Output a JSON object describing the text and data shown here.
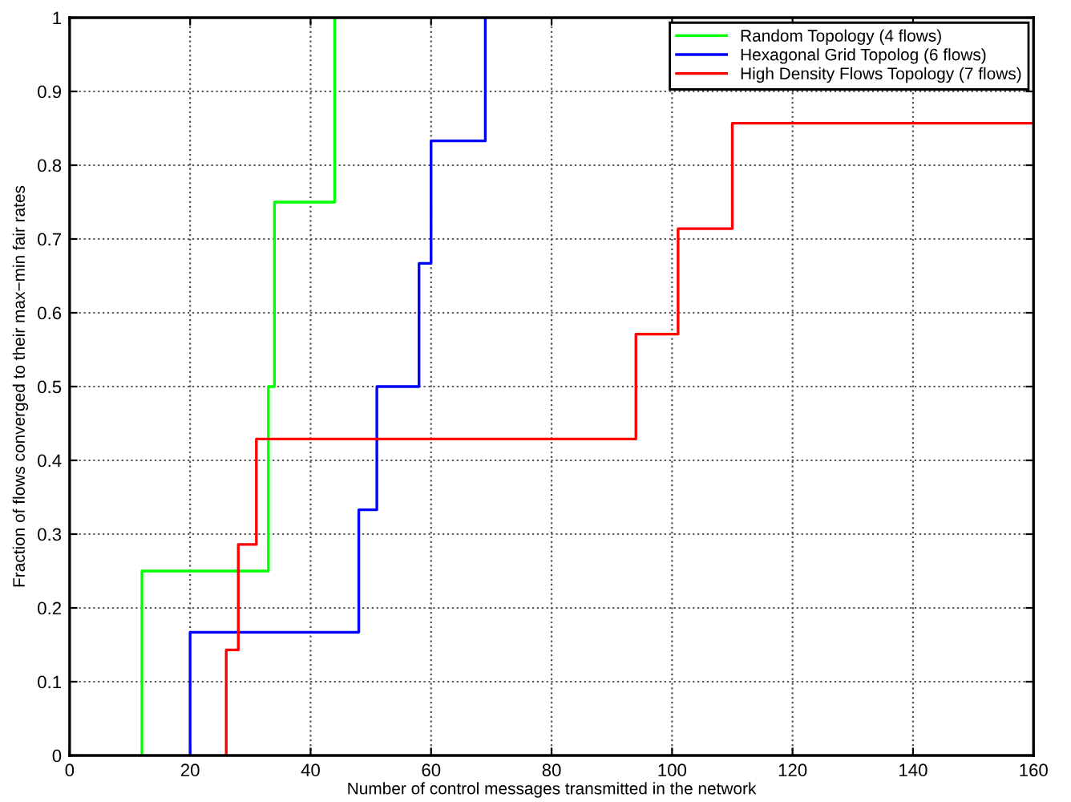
{
  "chart_data": {
    "type": "step",
    "xlabel": "Number of control messages transmitted in the network",
    "ylabel": "Fraction of flows converged to their max−min fair rates",
    "xlim": [
      0,
      160
    ],
    "xticks": [
      0,
      20,
      40,
      60,
      80,
      100,
      120,
      140,
      160
    ],
    "ylim": [
      0,
      1
    ],
    "yticks": [
      0,
      0.1,
      0.2,
      0.3,
      0.4,
      0.5,
      0.6,
      0.7,
      0.8,
      0.9,
      1
    ],
    "grid": true,
    "legend": "top right",
    "line_style": "solid",
    "marker": "none",
    "series": [
      {
        "name": "Random Topology (4 flows)",
        "color": "#00ff00",
        "x": [
          12,
          12,
          33,
          34,
          44
        ],
        "values": [
          0,
          0.25,
          0.5,
          0.75,
          1
        ]
      },
      {
        "name": "Hexagonal Grid Topolog (6 flows)",
        "color": "#0000ff",
        "x": [
          20,
          20,
          48,
          51,
          58,
          60,
          69
        ],
        "values": [
          0,
          0.167,
          0.333,
          0.5,
          0.667,
          0.833,
          1
        ]
      },
      {
        "name": "High Density Flows Topology (7 flows)",
        "color": "#ff0000",
        "x": [
          26,
          26,
          28,
          31,
          94,
          101,
          110,
          160
        ],
        "values": [
          0,
          0.143,
          0.286,
          0.429,
          0.571,
          0.714,
          0.857,
          0.857
        ]
      }
    ]
  }
}
